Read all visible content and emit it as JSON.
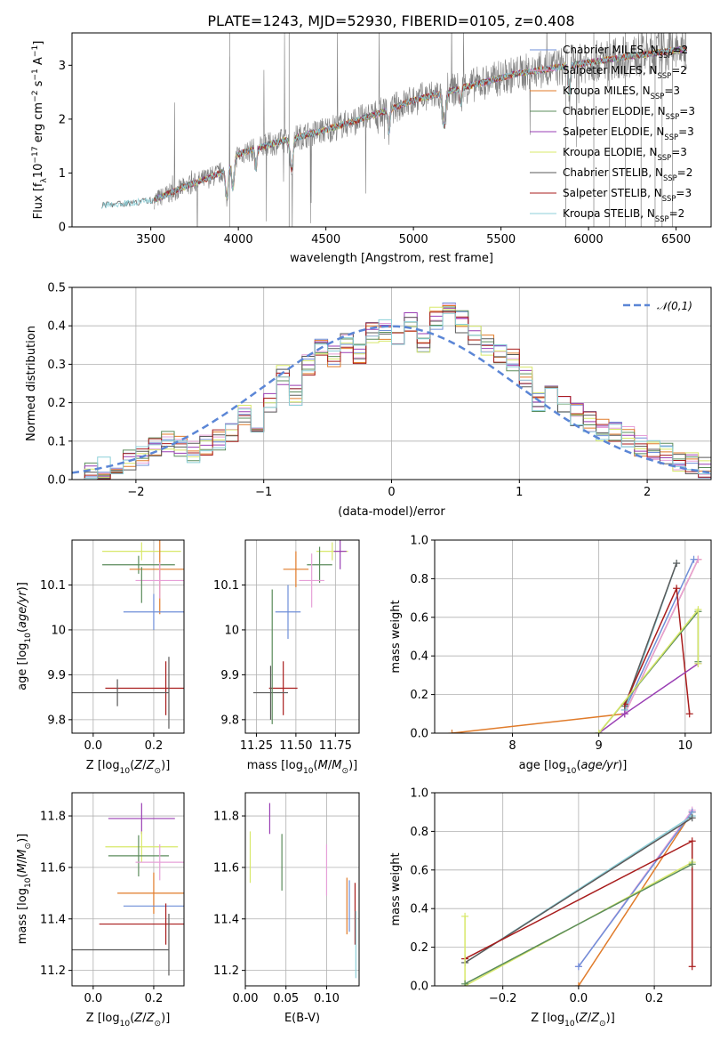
{
  "figure": {
    "title": "PLATE=1243, MJD=52930, FIBERID=0105, z=0.408"
  },
  "colors": {
    "chabrier_miles": "#6f8fd8",
    "salpeter_miles": "#e6a0d8",
    "kroupa_miles": "#e07b2a",
    "chabrier_elodie": "#5b8c5b",
    "salpeter_elodie": "#9a3fb4",
    "kroupa_elodie": "#d8e86a",
    "chabrier_stelib": "#5a5a5a",
    "salpeter_stelib": "#a81c1c",
    "kroupa_stelib": "#8ccfd8",
    "spectrum": "#808080",
    "normal": "#5b86d6"
  },
  "chart_data": [
    {
      "id": "spectrum",
      "type": "line",
      "xlabel": "wavelength [Angstrom, rest frame]",
      "ylabel": "Flux [f_λ 10^-17 erg cm^-2 s^-1 A^-1]",
      "xlim": [
        3050,
        6700
      ],
      "ylim": [
        0,
        3.6
      ],
      "xticks": [
        3500,
        4000,
        4500,
        5000,
        5500,
        6000,
        6500
      ],
      "yticks": [
        0,
        1,
        2,
        3
      ],
      "grid": false,
      "legend": "top-right",
      "series": [
        {
          "name": "Chabrier MILES, N_SSP=2",
          "color": "#6f8fd8"
        },
        {
          "name": "Salpeter MILES, N_SSP=2",
          "color": "#e6a0d8"
        },
        {
          "name": "Kroupa MILES, N_SSP=3",
          "color": "#e07b2a"
        },
        {
          "name": "Chabrier ELODIE, N_SSP=3",
          "color": "#5b8c5b"
        },
        {
          "name": "Salpeter ELODIE, N_SSP=3",
          "color": "#9a3fb4"
        },
        {
          "name": "Kroupa ELODIE, N_SSP=3",
          "color": "#d8e86a"
        },
        {
          "name": "Chabrier STELIB, N_SSP=2",
          "color": "#5a5a5a"
        },
        {
          "name": "Salpeter STELIB, N_SSP=3",
          "color": "#a81c1c"
        },
        {
          "name": "Kroupa STELIB, N_SSP=2",
          "color": "#8ccfd8"
        }
      ],
      "continuum": {
        "x": [
          3220,
          3400,
          3520,
          3700,
          3900,
          4000,
          4200,
          4500,
          4800,
          5000,
          5300,
          5600,
          5900,
          6200,
          6550
        ],
        "y": [
          0.4,
          0.45,
          0.5,
          0.75,
          1.0,
          1.35,
          1.55,
          1.8,
          2.1,
          2.35,
          2.6,
          2.85,
          3.0,
          3.15,
          3.3
        ]
      }
    },
    {
      "id": "residuals",
      "type": "line",
      "xlabel": "(data-model)/error",
      "ylabel": "Normed distribution",
      "xlim": [
        -2.5,
        2.5
      ],
      "ylim": [
        0,
        0.5
      ],
      "xticks": [
        -2,
        -1,
        0,
        1,
        2
      ],
      "yticks": [
        0.0,
        0.1,
        0.2,
        0.3,
        0.4,
        0.5
      ],
      "grid": true,
      "legend": "top-right",
      "reference": {
        "name": "𝒩(0,1)",
        "mean": 0,
        "sigma": 1
      },
      "bins": [
        -2.5,
        -2.4,
        -2.3,
        -2.2,
        -2.1,
        -2.0,
        -1.9,
        -1.8,
        -1.7,
        -1.6,
        -1.5,
        -1.4,
        -1.3,
        -1.2,
        -1.1,
        -1.0,
        -0.9,
        -0.8,
        -0.7,
        -0.6,
        -0.5,
        -0.4,
        -0.3,
        -0.2,
        -0.1,
        0.0,
        0.1,
        0.2,
        0.3,
        0.4,
        0.5,
        0.6,
        0.7,
        0.8,
        0.9,
        1.0,
        1.1,
        1.2,
        1.3,
        1.4,
        1.5,
        1.6,
        1.7,
        1.8,
        1.9,
        2.0,
        2.1,
        2.2,
        2.3,
        2.4,
        2.5
      ],
      "base_hist": [
        0.01,
        0.02,
        0.03,
        0.04,
        0.05,
        0.06,
        0.08,
        0.1,
        0.09,
        0.07,
        0.09,
        0.1,
        0.12,
        0.17,
        0.14,
        0.2,
        0.27,
        0.22,
        0.3,
        0.35,
        0.32,
        0.36,
        0.33,
        0.38,
        0.39,
        0.37,
        0.41,
        0.36,
        0.42,
        0.44,
        0.41,
        0.37,
        0.35,
        0.33,
        0.31,
        0.27,
        0.2,
        0.25,
        0.2,
        0.17,
        0.15,
        0.13,
        0.12,
        0.11,
        0.09,
        0.08,
        0.07,
        0.05,
        0.04,
        0.03
      ]
    },
    {
      "id": "age_vs_Z",
      "type": "scatter",
      "xlabel": "Z [log10(Z/Z⊙)]",
      "ylabel": "age [log10(age/yr)]",
      "xlim": [
        -0.07,
        0.3
      ],
      "ylim": [
        9.77,
        10.2
      ],
      "xticks": [
        0.0,
        0.2
      ],
      "xticklabels": [
        "0.0",
        "0.2"
      ],
      "yticks": [
        9.8,
        9.9,
        10.0,
        10.1
      ],
      "grid": true,
      "points": [
        {
          "x": 0.16,
          "y": 10.175,
          "xerr": 0.13,
          "yerr": 0.02,
          "color": "#d8e86a"
        },
        {
          "x": 0.15,
          "y": 10.145,
          "xerr": 0.12,
          "yerr": 0.02,
          "color": "#5b8c5b"
        },
        {
          "x": 0.22,
          "y": 10.135,
          "xerr": 0.1,
          "yerr": 0.1,
          "color": "#e07b2a"
        },
        {
          "x": 0.22,
          "y": 10.11,
          "xerr": 0.08,
          "yerr": 0.04,
          "color": "#e6a0d8"
        },
        {
          "x": 0.2,
          "y": 10.04,
          "xerr": 0.1,
          "yerr": 0.04,
          "color": "#6f8fd8"
        },
        {
          "x": 0.16,
          "y": 10.1,
          "xerr": 0.0,
          "yerr": 0.04,
          "color": "#5b8c5b"
        },
        {
          "x": 0.24,
          "y": 9.87,
          "xerr": 0.2,
          "yerr": 0.06,
          "color": "#a81c1c"
        },
        {
          "x": 0.08,
          "y": 9.86,
          "xerr": 0.17,
          "yerr": 0.03,
          "color": "#5a5a5a"
        },
        {
          "x": 0.25,
          "y": 9.86,
          "xerr": 0.0,
          "yerr": 0.08,
          "color": "#5a5a5a"
        }
      ]
    },
    {
      "id": "age_vs_mass",
      "type": "scatter",
      "xlabel": "mass [log10(M/M⊙)]",
      "ylabel": "",
      "xlim": [
        11.18,
        11.9
      ],
      "ylim": [
        9.77,
        10.2
      ],
      "xticks": [
        11.25,
        11.5,
        11.75
      ],
      "xticklabels": [
        "11.25",
        "11.50",
        "11.75"
      ],
      "yticks": [
        9.8,
        9.9,
        10.0,
        10.1
      ],
      "grid": true,
      "points": [
        {
          "x": 11.73,
          "y": 10.175,
          "xerr": 0.1,
          "yerr": 0.02,
          "color": "#d8e86a"
        },
        {
          "x": 11.78,
          "y": 10.175,
          "xerr": 0.04,
          "yerr": 0.04,
          "color": "#9a3fb4"
        },
        {
          "x": 11.65,
          "y": 10.145,
          "xerr": 0.08,
          "yerr": 0.04,
          "color": "#5b8c5b"
        },
        {
          "x": 11.5,
          "y": 10.135,
          "xerr": 0.08,
          "yerr": 0.04,
          "color": "#e07b2a"
        },
        {
          "x": 11.6,
          "y": 10.11,
          "xerr": 0.08,
          "yerr": 0.06,
          "color": "#e6a0d8"
        },
        {
          "x": 11.45,
          "y": 10.04,
          "xerr": 0.08,
          "yerr": 0.06,
          "color": "#6f8fd8"
        },
        {
          "x": 11.42,
          "y": 9.87,
          "xerr": 0.09,
          "yerr": 0.06,
          "color": "#a81c1c"
        },
        {
          "x": 11.34,
          "y": 9.86,
          "xerr": 0.11,
          "yerr": 0.06,
          "color": "#5a5a5a"
        },
        {
          "x": 11.35,
          "y": 9.94,
          "xerr": 0.0,
          "yerr": 0.15,
          "color": "#5b8c5b"
        }
      ]
    },
    {
      "id": "mass_weight_vs_age",
      "type": "line",
      "xlabel": "age [log10(age/yr)]",
      "ylabel": "mass weight",
      "xlim": [
        7.1,
        10.3
      ],
      "ylim": [
        0,
        1.0
      ],
      "xticks": [
        8,
        9,
        10
      ],
      "yticks": [
        0.0,
        0.2,
        0.4,
        0.6,
        0.8,
        1.0
      ],
      "grid": true,
      "series": [
        {
          "color": "#e07b2a",
          "x": [
            7.3,
            9.3,
            10.15
          ],
          "y": [
            0.0,
            0.1,
            0.9
          ]
        },
        {
          "color": "#e6a0d8",
          "x": [
            9.3,
            10.15
          ],
          "y": [
            0.1,
            0.9
          ]
        },
        {
          "color": "#6f8fd8",
          "x": [
            9.3,
            10.1
          ],
          "y": [
            0.12,
            0.9
          ]
        },
        {
          "color": "#8ccfd8",
          "x": [
            9.3,
            9.9
          ],
          "y": [
            0.12,
            0.88
          ]
        },
        {
          "color": "#5a5a5a",
          "x": [
            9.3,
            9.9
          ],
          "y": [
            0.14,
            0.88
          ]
        },
        {
          "color": "#a81c1c",
          "x": [
            9.3,
            9.9,
            10.05
          ],
          "y": [
            0.15,
            0.75,
            0.1
          ]
        },
        {
          "color": "#9a3fb4",
          "x": [
            9.0,
            9.3,
            10.15
          ],
          "y": [
            0.0,
            0.1,
            0.36
          ]
        },
        {
          "color": "#5b8c5b",
          "x": [
            9.0,
            10.15,
            10.15
          ],
          "y": [
            0.0,
            0.63,
            0.37
          ]
        },
        {
          "color": "#d8e86a",
          "x": [
            9.0,
            10.15,
            10.15
          ],
          "y": [
            0.0,
            0.64,
            0.36
          ]
        }
      ]
    },
    {
      "id": "mass_vs_Z",
      "type": "scatter",
      "xlabel": "Z [log10(Z/Z⊙)]",
      "ylabel": "mass [log10(M/M⊙)]",
      "xlim": [
        -0.07,
        0.3
      ],
      "ylim": [
        11.14,
        11.89
      ],
      "xticks": [
        0.0,
        0.2
      ],
      "xticklabels": [
        "0.0",
        "0.2"
      ],
      "yticks": [
        11.2,
        11.4,
        11.6,
        11.8
      ],
      "grid": true,
      "points": [
        {
          "x": 0.16,
          "y": 11.79,
          "xerr": 0.11,
          "yerr": 0.06,
          "color": "#9a3fb4"
        },
        {
          "x": 0.16,
          "y": 11.68,
          "xerr": 0.12,
          "yerr": 0.06,
          "color": "#d8e86a"
        },
        {
          "x": 0.15,
          "y": 11.645,
          "xerr": 0.1,
          "yerr": 0.08,
          "color": "#5b8c5b"
        },
        {
          "x": 0.22,
          "y": 11.62,
          "xerr": 0.08,
          "yerr": 0.07,
          "color": "#e6a0d8"
        },
        {
          "x": 0.2,
          "y": 11.5,
          "xerr": 0.12,
          "yerr": 0.08,
          "color": "#e07b2a"
        },
        {
          "x": 0.2,
          "y": 11.45,
          "xerr": 0.1,
          "yerr": 0.0,
          "color": "#6f8fd8"
        },
        {
          "x": 0.24,
          "y": 11.38,
          "xerr": 0.22,
          "yerr": 0.08,
          "color": "#a81c1c"
        },
        {
          "x": 0.08,
          "y": 11.28,
          "xerr": 0.17,
          "yerr": 0.0,
          "color": "#5a5a5a"
        },
        {
          "x": 0.25,
          "y": 11.3,
          "xerr": 0.0,
          "yerr": 0.12,
          "color": "#5a5a5a"
        }
      ]
    },
    {
      "id": "mass_vs_ebv",
      "type": "scatter",
      "xlabel": "E(B-V)",
      "ylabel": "",
      "xlim": [
        0.0,
        0.14
      ],
      "ylim": [
        11.14,
        11.89
      ],
      "xticks": [
        0.0,
        0.05,
        0.1
      ],
      "xticklabels": [
        "0.00",
        "0.05",
        "0.10"
      ],
      "yticks": [
        11.2,
        11.4,
        11.6,
        11.8
      ],
      "grid": true,
      "points": [
        {
          "x": 0.006,
          "y": 11.64,
          "xerr": 0,
          "yerr": 0.1,
          "color": "#d8e86a"
        },
        {
          "x": 0.03,
          "y": 11.79,
          "xerr": 0,
          "yerr": 0.06,
          "color": "#9a3fb4"
        },
        {
          "x": 0.045,
          "y": 11.62,
          "xerr": 0,
          "yerr": 0.11,
          "color": "#5b8c5b"
        },
        {
          "x": 0.1,
          "y": 11.59,
          "xerr": 0,
          "yerr": 0.1,
          "color": "#e6a0d8"
        },
        {
          "x": 0.125,
          "y": 11.45,
          "xerr": 0,
          "yerr": 0.11,
          "color": "#e07b2a"
        },
        {
          "x": 0.128,
          "y": 11.45,
          "xerr": 0,
          "yerr": 0.1,
          "color": "#6f8fd8"
        },
        {
          "x": 0.135,
          "y": 11.42,
          "xerr": 0,
          "yerr": 0.12,
          "color": "#a81c1c"
        },
        {
          "x": 0.136,
          "y": 11.3,
          "xerr": 0,
          "yerr": 0.13,
          "color": "#8ccfd8"
        }
      ]
    },
    {
      "id": "mass_weight_vs_Z",
      "type": "line",
      "xlabel": "Z [log10(Z/Z⊙)]",
      "ylabel": "mass weight",
      "xlim": [
        -0.38,
        0.35
      ],
      "ylim": [
        0,
        1.0
      ],
      "xticks": [
        -0.2,
        0.0,
        0.2
      ],
      "xticklabels": [
        "−0.2",
        "0.0",
        "0.2"
      ],
      "yticks": [
        0.0,
        0.2,
        0.4,
        0.6,
        0.8,
        1.0
      ],
      "grid": true,
      "series": [
        {
          "color": "#e07b2a",
          "x": [
            0.0,
            0.3
          ],
          "y": [
            0.0,
            0.9
          ]
        },
        {
          "color": "#e6a0d8",
          "x": [
            0.0,
            0.3
          ],
          "y": [
            0.1,
            0.91
          ]
        },
        {
          "color": "#6f8fd8",
          "x": [
            0.0,
            0.3
          ],
          "y": [
            0.1,
            0.9
          ]
        },
        {
          "color": "#8ccfd8",
          "x": [
            -0.3,
            0.3
          ],
          "y": [
            0.12,
            0.88
          ]
        },
        {
          "color": "#5a5a5a",
          "x": [
            -0.3,
            0.3
          ],
          "y": [
            0.12,
            0.87
          ]
        },
        {
          "color": "#a81c1c",
          "x": [
            -0.3,
            0.3,
            0.3
          ],
          "y": [
            0.14,
            0.75,
            0.1
          ]
        },
        {
          "color": "#d8e86a",
          "x": [
            -0.3,
            -0.3,
            0.3
          ],
          "y": [
            0.36,
            0.0,
            0.64
          ]
        },
        {
          "color": "#5b8c5b",
          "x": [
            -0.3,
            0.3
          ],
          "y": [
            0.01,
            0.63
          ]
        }
      ]
    }
  ]
}
